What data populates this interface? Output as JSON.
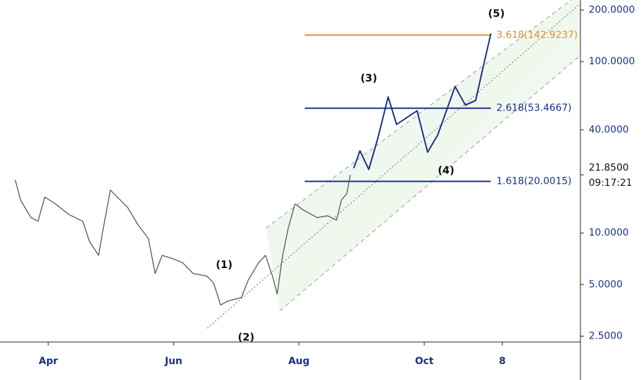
{
  "chart_data": {
    "type": "line",
    "log_y": true,
    "xlim": [
      -23.5,
      259
    ],
    "ylim": [
      2.31,
      229
    ],
    "xticks": [
      {
        "value": 0,
        "label": "Apr"
      },
      {
        "value": 61,
        "label": "Jun"
      },
      {
        "value": 122,
        "label": "Aug"
      },
      {
        "value": 183,
        "label": "Oct"
      },
      {
        "value": 221,
        "label": "8"
      }
    ],
    "yticks": [
      {
        "value": 200,
        "label": "200.0000"
      },
      {
        "value": 100,
        "label": "100.0000"
      },
      {
        "value": 40,
        "label": "40.0000"
      },
      {
        "value": 10,
        "label": "10.0000"
      },
      {
        "value": 5,
        "label": "5.0000"
      },
      {
        "value": 2.5,
        "label": "2.5000"
      }
    ],
    "series": [
      {
        "color": "#555555",
        "x": [
          -16.1,
          -13.4,
          -8.4,
          -5,
          -1.7,
          3.4,
          10.1,
          16.8,
          20.1,
          24.5,
          26.8,
          30.2,
          33.6,
          38.6,
          43.6,
          48.7,
          52,
          55.4,
          60.4,
          65.4,
          70.5,
          77.2,
          80.5,
          83.9,
          87.2,
          94,
          97.3,
          102.3,
          105.7,
          109.1,
          111.4,
          114.1,
          116.8,
          120.1,
          124.2,
          130.9,
          135.9,
          140.3,
          142.6,
          145.3,
          147
        ],
        "values": [
          20.4,
          15.5,
          12.3,
          11.7,
          16.2,
          14.8,
          12.8,
          11.7,
          8.9,
          7.4,
          10.7,
          17.8,
          16.2,
          14.1,
          11.2,
          9.3,
          5.8,
          7.4,
          7.1,
          6.7,
          5.8,
          5.6,
          5.1,
          3.8,
          4.0,
          4.2,
          5.3,
          6.7,
          7.4,
          5.6,
          4.4,
          7.4,
          10.7,
          14.8,
          13.6,
          12.3,
          12.6,
          11.9,
          15.5,
          17,
          21.85
        ]
      },
      {
        "color": "#1a2f8a",
        "x": [
          148.7,
          151.7,
          156,
          160.4,
          165.4,
          169.5,
          174.5,
          179.5,
          184.6,
          189.6,
          198,
          203,
          208,
          211.4,
          215.4
        ],
        "values": [
          23.9,
          30.2,
          23.5,
          35.7,
          62.3,
          43.0,
          47.1,
          51.7,
          29.6,
          37.4,
          71.6,
          55.7,
          59.4,
          90.3,
          146
        ]
      }
    ],
    "levels": [
      {
        "label": "3.618(142.9237)",
        "value": 142.9237,
        "color": "#f08a24",
        "x": [
          124.8,
          215.4
        ]
      },
      {
        "label": "2.618(53.4667)",
        "value": 53.4667,
        "color": "#1a2f8a",
        "x": [
          124.8,
          215.4
        ]
      },
      {
        "label": "1.618(20.0015)",
        "value": 20.0015,
        "color": "#1a2f8a",
        "x": [
          124.8,
          215.4
        ]
      }
    ],
    "annotations": [
      {
        "text": "(1)",
        "x": 85.6,
        "y": 6.5
      },
      {
        "text": "(2)",
        "x": 96.3,
        "y": 2.45
      },
      {
        "text": "(3)",
        "x": 156,
        "y": 80
      },
      {
        "text": "(4)",
        "x": 193.6,
        "y": 23.1
      },
      {
        "text": "(5)",
        "x": 218.1,
        "y": 190
      }
    ],
    "last_price": {
      "value": 21.85,
      "label": "21.8500",
      "time": "09:17:21"
    }
  }
}
